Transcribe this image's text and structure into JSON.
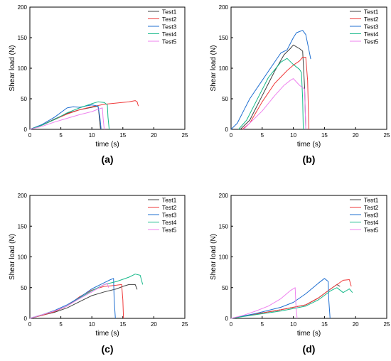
{
  "colors": {
    "Test1": "#404040",
    "Test2": "#ef3b3b",
    "Test3": "#1f6fd1",
    "Test4": "#17b98a",
    "Test5": "#ee82ee"
  },
  "chart_data": [
    {
      "type": "line",
      "panel_label": "(a)",
      "xlabel": "time (s)",
      "ylabel": "Shear load (N)",
      "xlim": [
        0,
        25
      ],
      "ylim": [
        0,
        200
      ],
      "xticks": [
        "0",
        "5",
        "10",
        "15",
        "20",
        "25"
      ],
      "yticks": [
        "0",
        "50",
        "100",
        "150",
        "200"
      ],
      "grid": false,
      "legend_position": "top-right",
      "series": [
        {
          "name": "Test1",
          "x": [
            0,
            2,
            4,
            6,
            8,
            10,
            11,
            11.1,
            11.4
          ],
          "y": [
            0,
            7,
            17,
            26,
            32,
            36,
            38,
            30,
            0
          ]
        },
        {
          "name": "Test2",
          "x": [
            0,
            2,
            4,
            6,
            8,
            10,
            12,
            14,
            16,
            17,
            17.3,
            17.5
          ],
          "y": [
            0,
            7,
            16,
            25,
            32,
            37,
            41,
            43,
            45,
            47,
            45,
            38
          ]
        },
        {
          "name": "Test3",
          "x": [
            0,
            2,
            4,
            6,
            7,
            8,
            9,
            10,
            11,
            11.3,
            11.5
          ],
          "y": [
            0,
            8,
            20,
            35,
            37,
            36,
            38,
            40,
            38,
            20,
            0
          ]
        },
        {
          "name": "Test4",
          "x": [
            0,
            2,
            4,
            6,
            8,
            10,
            11,
            12,
            12.5,
            12.6,
            12.8
          ],
          "y": [
            0,
            7,
            16,
            27,
            35,
            42,
            45,
            44,
            40,
            20,
            0
          ]
        },
        {
          "name": "Test5",
          "x": [
            0,
            2,
            4,
            6,
            8,
            10,
            11,
            11.7,
            11.8,
            12
          ],
          "y": [
            0,
            5,
            12,
            18,
            24,
            29,
            33,
            35,
            20,
            0
          ]
        }
      ]
    },
    {
      "type": "line",
      "panel_label": "(b)",
      "xlabel": "time (s)",
      "ylabel": "Shear load (N)",
      "xlim": [
        0,
        25
      ],
      "ylim": [
        0,
        200
      ],
      "xticks": [
        "0",
        "5",
        "10",
        "15",
        "20",
        "25"
      ],
      "yticks": [
        "0",
        "50",
        "100",
        "150",
        "200"
      ],
      "grid": false,
      "legend_position": "top-right",
      "series": [
        {
          "name": "Test1",
          "x": [
            1.5,
            3,
            5,
            7,
            8.5,
            9.5,
            10,
            11,
            11.5,
            11.8,
            12
          ],
          "y": [
            0,
            15,
            55,
            95,
            122,
            132,
            138,
            132,
            128,
            70,
            0
          ]
        },
        {
          "name": "Test2",
          "x": [
            1.8,
            3,
            5,
            7,
            9,
            10,
            11,
            11.5,
            12,
            12.3,
            12.5
          ],
          "y": [
            0,
            10,
            45,
            75,
            96,
            105,
            112,
            118,
            118,
            80,
            0
          ]
        },
        {
          "name": "Test3",
          "x": [
            0,
            1,
            2,
            3,
            5,
            7,
            8,
            9,
            9.5,
            10,
            10.5,
            11,
            11.5,
            12,
            12.5,
            12.8
          ],
          "y": [
            0,
            10,
            30,
            50,
            80,
            110,
            125,
            130,
            140,
            150,
            158,
            160,
            162,
            155,
            130,
            115
          ]
        },
        {
          "name": "Test4",
          "x": [
            1.2,
            2.5,
            4,
            6,
            8,
            9,
            10,
            11,
            11.3,
            11.5,
            11.6
          ],
          "y": [
            0,
            15,
            45,
            85,
            110,
            116,
            106,
            98,
            93,
            50,
            0
          ]
        },
        {
          "name": "Test5",
          "x": [
            2,
            3,
            5,
            7,
            8.5,
            9.5,
            10,
            11,
            11.8,
            12
          ],
          "y": [
            0,
            10,
            30,
            55,
            72,
            80,
            83,
            72,
            66,
            0
          ]
        }
      ]
    },
    {
      "type": "line",
      "panel_label": "(c)",
      "xlabel": "time (s)",
      "ylabel": "Shear load (N)",
      "xlim": [
        0,
        25
      ],
      "ylim": [
        0,
        200
      ],
      "xticks": [
        "0",
        "5",
        "10",
        "15",
        "20",
        "25"
      ],
      "yticks": [
        "0",
        "50",
        "100",
        "150",
        "200"
      ],
      "grid": false,
      "legend_position": "top-right",
      "series": [
        {
          "name": "Test1",
          "x": [
            0,
            2,
            4,
            6,
            8,
            10,
            12,
            14,
            15,
            16,
            17,
            17.3
          ],
          "y": [
            0,
            5,
            10,
            17,
            27,
            37,
            43,
            48,
            52,
            55,
            55,
            47
          ]
        },
        {
          "name": "Test2",
          "x": [
            0,
            2,
            4,
            6,
            8,
            10,
            12,
            13,
            14,
            14.8,
            15,
            15.1
          ],
          "y": [
            0,
            5,
            11,
            20,
            35,
            46,
            52,
            53,
            54,
            55,
            30,
            0
          ]
        },
        {
          "name": "Test3",
          "x": [
            0,
            2,
            4,
            6,
            8,
            10,
            12,
            13,
            13.5,
            13.6,
            13.8
          ],
          "y": [
            0,
            6,
            13,
            22,
            34,
            48,
            58,
            63,
            65,
            30,
            0
          ]
        },
        {
          "name": "Test4",
          "x": [
            0,
            2,
            4,
            6,
            8,
            10,
            12,
            14,
            16,
            17,
            17.8,
            18.2
          ],
          "y": [
            0,
            6,
            12,
            20,
            33,
            45,
            55,
            60,
            67,
            72,
            70,
            55
          ]
        },
        {
          "name": "Test5",
          "x": [
            0,
            2,
            4,
            6,
            8,
            10,
            12,
            12.5,
            12.7
          ],
          "y": [
            0,
            6,
            12,
            20,
            32,
            43,
            55,
            57,
            50
          ]
        }
      ]
    },
    {
      "type": "line",
      "panel_label": "(d)",
      "xlabel": "time (s)",
      "ylabel": "Shear load (N)",
      "xlim": [
        0,
        25
      ],
      "ylim": [
        0,
        200
      ],
      "xticks": [
        "0",
        "5",
        "10",
        "15",
        "20",
        "25"
      ],
      "yticks": [
        "0",
        "50",
        "100",
        "150",
        "200"
      ],
      "grid": false,
      "legend_position": "top-right",
      "series": [
        {
          "name": "Test1",
          "x": [
            0,
            4,
            8,
            12,
            14,
            16,
            17,
            17.5
          ],
          "y": [
            0,
            7,
            14,
            22,
            33,
            48,
            55,
            52
          ]
        },
        {
          "name": "Test2",
          "x": [
            0,
            4,
            8,
            12,
            14,
            16,
            18,
            19,
            19.3
          ],
          "y": [
            0,
            7,
            14,
            22,
            33,
            48,
            62,
            63,
            52
          ]
        },
        {
          "name": "Test3",
          "x": [
            0,
            4,
            8,
            10,
            12,
            14,
            15,
            15.6,
            15.7,
            15.9
          ],
          "y": [
            0,
            8,
            18,
            26,
            40,
            57,
            65,
            60,
            30,
            0
          ]
        },
        {
          "name": "Test4",
          "x": [
            0,
            4,
            8,
            12,
            14,
            16,
            17,
            18,
            19,
            19.5
          ],
          "y": [
            0,
            6,
            12,
            20,
            30,
            45,
            50,
            42,
            48,
            42
          ]
        },
        {
          "name": "Test5",
          "x": [
            0,
            2,
            4,
            6,
            8,
            9.5,
            10.3,
            10.4,
            10.6
          ],
          "y": [
            0,
            5,
            12,
            20,
            32,
            45,
            50,
            25,
            0
          ]
        }
      ]
    }
  ]
}
